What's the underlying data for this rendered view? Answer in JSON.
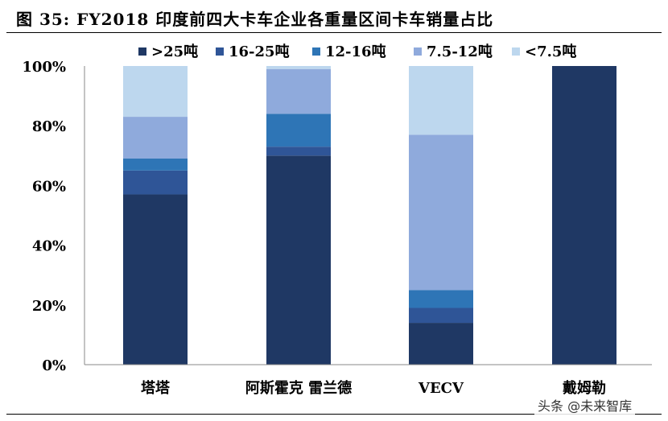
{
  "title": "图 35: FY2018 印度前四大卡车企业各重量区间卡车销量占比",
  "watermark": "头条 @未来智库",
  "chart_data": {
    "type": "bar",
    "stacked": true,
    "categories": [
      "塔塔",
      "阿斯霍克 雷兰德",
      "VECV",
      "戴姆勒"
    ],
    "ylim": [
      0,
      100
    ],
    "yticks": [
      0,
      20,
      40,
      60,
      80,
      100
    ],
    "ytick_labels": [
      "0%",
      "20%",
      "40%",
      "60%",
      "80%",
      "100%"
    ],
    "grid": false,
    "legend_position": "top",
    "series": [
      {
        "name": ">25吨",
        "color": "#1f3864",
        "values": [
          57,
          70,
          14,
          100
        ]
      },
      {
        "name": "16-25吨",
        "color": "#2f5597",
        "values": [
          8,
          3,
          5,
          0
        ]
      },
      {
        "name": "12-16吨",
        "color": "#2e75b6",
        "values": [
          4,
          11,
          6,
          0
        ]
      },
      {
        "name": "7.5-12吨",
        "color": "#8faadc",
        "values": [
          14,
          15,
          52,
          0
        ]
      },
      {
        "name": "<7.5吨",
        "color": "#bdd7ee",
        "values": [
          17,
          1,
          23,
          0
        ]
      }
    ]
  }
}
